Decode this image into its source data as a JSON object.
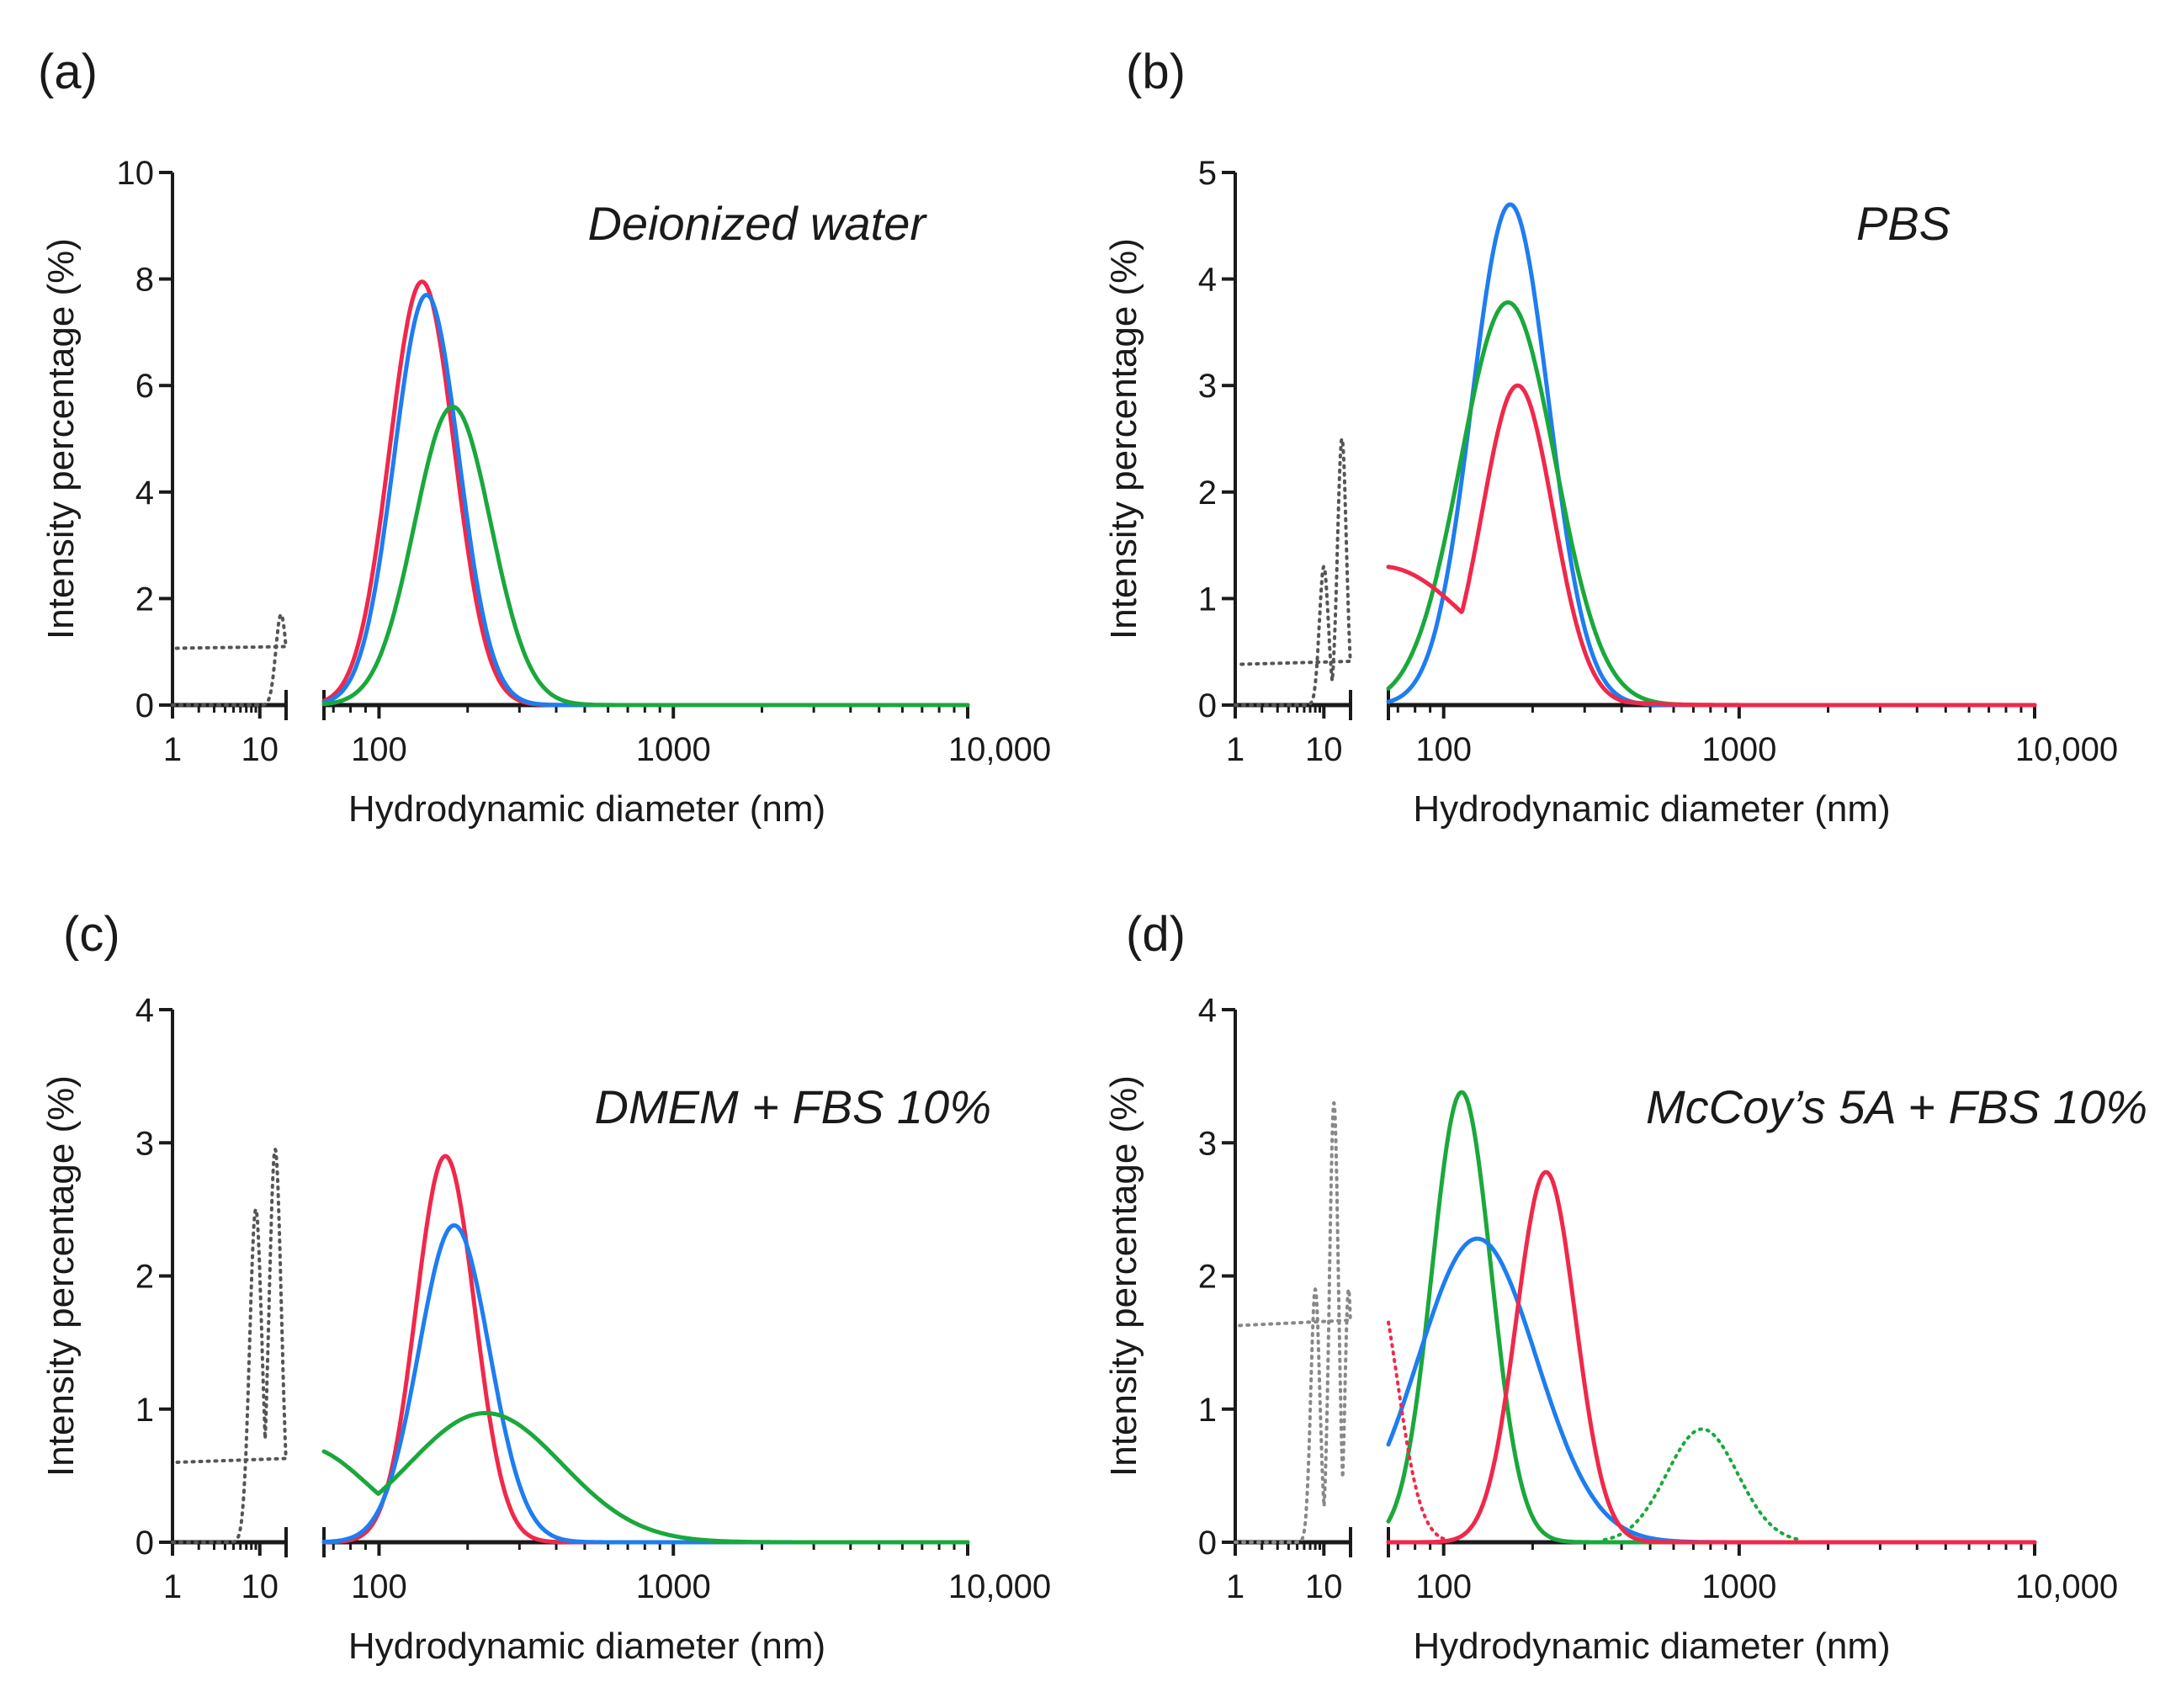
{
  "chart_data": [
    {
      "type": "line",
      "panel_label": "(a)",
      "medium": "Deionized water",
      "xlabel": "Hydrodynamic diameter (nm)",
      "ylabel": "Intensity percentage (%)",
      "xscale": "log",
      "xlim": [
        1,
        10000
      ],
      "axis_break": [
        20,
        65
      ],
      "ylim": [
        0,
        10
      ],
      "yticks": [
        0,
        2,
        4,
        6,
        8,
        10
      ],
      "ytick_labels": [
        "0",
        "2",
        "4",
        "6",
        "8",
        "10"
      ],
      "xticks": [
        1,
        10,
        100,
        1000,
        10000
      ],
      "xtick_labels": [
        "1",
        "10",
        "100",
        "1000",
        "10,000"
      ],
      "series": [
        {
          "name": "grey-dotted",
          "color": "#555555",
          "style": "dotted",
          "peaks": [
            {
              "center": 17.5,
              "height": 1.7,
              "width": 0.06
            }
          ],
          "x_range": [
            1,
            20
          ]
        },
        {
          "name": "red",
          "color": "#f0284a",
          "style": "solid",
          "peaks": [
            {
              "center": 140,
              "height": 7.95,
              "width": 0.11
            }
          ],
          "x_range": [
            65,
            10000
          ]
        },
        {
          "name": "blue",
          "color": "#1e7df0",
          "style": "solid",
          "peaks": [
            {
              "center": 145,
              "height": 7.7,
              "width": 0.11
            }
          ],
          "x_range": [
            65,
            10000
          ]
        },
        {
          "name": "green",
          "color": "#1aa83c",
          "style": "solid",
          "peaks": [
            {
              "center": 178,
              "height": 5.6,
              "width": 0.13
            }
          ],
          "x_range": [
            65,
            10000
          ]
        }
      ]
    },
    {
      "type": "line",
      "panel_label": "(b)",
      "medium": "PBS",
      "xlabel": "Hydrodynamic diameter (nm)",
      "ylabel": "Intensity percentage (%)",
      "xscale": "log",
      "xlim": [
        1,
        10000
      ],
      "axis_break": [
        20,
        65
      ],
      "ylim": [
        0,
        5
      ],
      "yticks": [
        0,
        1,
        2,
        3,
        4,
        5
      ],
      "ytick_labels": [
        "0",
        "1",
        "2",
        "3",
        "4",
        "5"
      ],
      "xticks": [
        1,
        10,
        100,
        1000,
        10000
      ],
      "xtick_labels": [
        "1",
        "10",
        "100",
        "1000",
        "10,000"
      ],
      "series": [
        {
          "name": "grey-dotted",
          "color": "#555555",
          "style": "dotted",
          "peaks": [
            {
              "center": 10,
              "height": 1.3,
              "width": 0.05
            },
            {
              "center": 16,
              "height": 2.5,
              "width": 0.05
            }
          ],
          "x_range": [
            1,
            20
          ]
        },
        {
          "name": "blue",
          "color": "#1e7df0",
          "style": "solid",
          "peaks": [
            {
              "center": 168,
              "height": 4.7,
              "width": 0.13
            }
          ],
          "x_range": [
            65,
            10000
          ]
        },
        {
          "name": "green",
          "color": "#1aa83c",
          "style": "solid",
          "peaks": [
            {
              "center": 165,
              "height": 3.78,
              "width": 0.16
            }
          ],
          "x_range": [
            65,
            10000
          ]
        },
        {
          "name": "red",
          "color": "#f0284a",
          "style": "solid",
          "peaks": [
            {
              "center": 178,
              "height": 3.0,
              "width": 0.12
            },
            {
              "center": 62,
              "height": 1.3,
              "width": 0.3
            }
          ],
          "x_range": [
            65,
            10000
          ]
        }
      ]
    },
    {
      "type": "line",
      "panel_label": "(c)",
      "medium": "DMEM + FBS 10%",
      "xlabel": "Hydrodynamic diameter (nm)",
      "ylabel": "Intensity percentage (%)",
      "xscale": "log",
      "xlim": [
        1,
        10000
      ],
      "axis_break": [
        20,
        65
      ],
      "ylim": [
        0,
        4
      ],
      "yticks": [
        0,
        1,
        2,
        3,
        4
      ],
      "ytick_labels": [
        "0",
        "1",
        "2",
        "3",
        "4"
      ],
      "xticks": [
        1,
        10,
        100,
        1000,
        10000
      ],
      "xtick_labels": [
        "1",
        "10",
        "100",
        "1000",
        "10,000"
      ],
      "series": [
        {
          "name": "grey-dotted",
          "color": "#555555",
          "style": "dotted",
          "peaks": [
            {
              "center": 9,
              "height": 2.5,
              "width": 0.07
            },
            {
              "center": 15,
              "height": 2.95,
              "width": 0.07
            }
          ],
          "x_range": [
            1,
            20
          ]
        },
        {
          "name": "red",
          "color": "#f0284a",
          "style": "solid",
          "peaks": [
            {
              "center": 168,
              "height": 2.9,
              "width": 0.1
            }
          ],
          "x_range": [
            65,
            10000
          ]
        },
        {
          "name": "blue",
          "color": "#1e7df0",
          "style": "solid",
          "peaks": [
            {
              "center": 180,
              "height": 2.38,
              "width": 0.12
            }
          ],
          "x_range": [
            65,
            10000
          ]
        },
        {
          "name": "green",
          "color": "#1aa83c",
          "style": "solid",
          "peaks": [
            {
              "center": 230,
              "height": 0.97,
              "width": 0.26
            },
            {
              "center": 55,
              "height": 0.72,
              "width": 0.22
            }
          ],
          "x_range": [
            65,
            10000
          ]
        }
      ]
    },
    {
      "type": "line",
      "panel_label": "(d)",
      "medium": "McCoy’s 5A + FBS 10%",
      "xlabel": "Hydrodynamic diameter (nm)",
      "ylabel": "Intensity percentage (%)",
      "xscale": "log",
      "xlim": [
        1,
        10000
      ],
      "axis_break": [
        20,
        65
      ],
      "ylim": [
        0,
        4
      ],
      "yticks": [
        0,
        1,
        2,
        3,
        4
      ],
      "ytick_labels": [
        "0",
        "1",
        "2",
        "3",
        "4"
      ],
      "xticks": [
        1,
        10,
        100,
        1000,
        10000
      ],
      "xtick_labels": [
        "1",
        "10",
        "100",
        "1000",
        "10,000"
      ],
      "series": [
        {
          "name": "grey-dotted",
          "color": "#888888",
          "style": "dotted",
          "peaks": [
            {
              "center": 8,
              "height": 1.9,
              "width": 0.05
            },
            {
              "center": 13,
              "height": 3.3,
              "width": 0.05
            },
            {
              "center": 19,
              "height": 1.9,
              "width": 0.04
            }
          ],
          "x_range": [
            1,
            20
          ]
        },
        {
          "name": "green",
          "color": "#1aa83c",
          "style": "solid",
          "peaks": [
            {
              "center": 115,
              "height": 3.38,
              "width": 0.1
            }
          ],
          "x_range": [
            65,
            10000
          ]
        },
        {
          "name": "green-dotted",
          "color": "#1aa83c",
          "style": "dotted",
          "peaks": [
            {
              "center": 750,
              "height": 0.85,
              "width": 0.12
            }
          ],
          "x_range": [
            350,
            1600
          ]
        },
        {
          "name": "blue",
          "color": "#1e7df0",
          "style": "solid",
          "peaks": [
            {
              "center": 130,
              "height": 2.28,
              "width": 0.2
            }
          ],
          "x_range": [
            65,
            10000
          ]
        },
        {
          "name": "red",
          "color": "#f0284a",
          "style": "solid",
          "peaks": [
            {
              "center": 222,
              "height": 2.78,
              "width": 0.1
            }
          ],
          "x_range": [
            65,
            10000
          ]
        },
        {
          "name": "red-dotted",
          "color": "#f0284a",
          "style": "dotted",
          "peaks": [
            {
              "center": 58,
              "height": 2.0,
              "width": 0.08
            }
          ],
          "x_range": [
            65,
            100
          ]
        }
      ]
    }
  ]
}
